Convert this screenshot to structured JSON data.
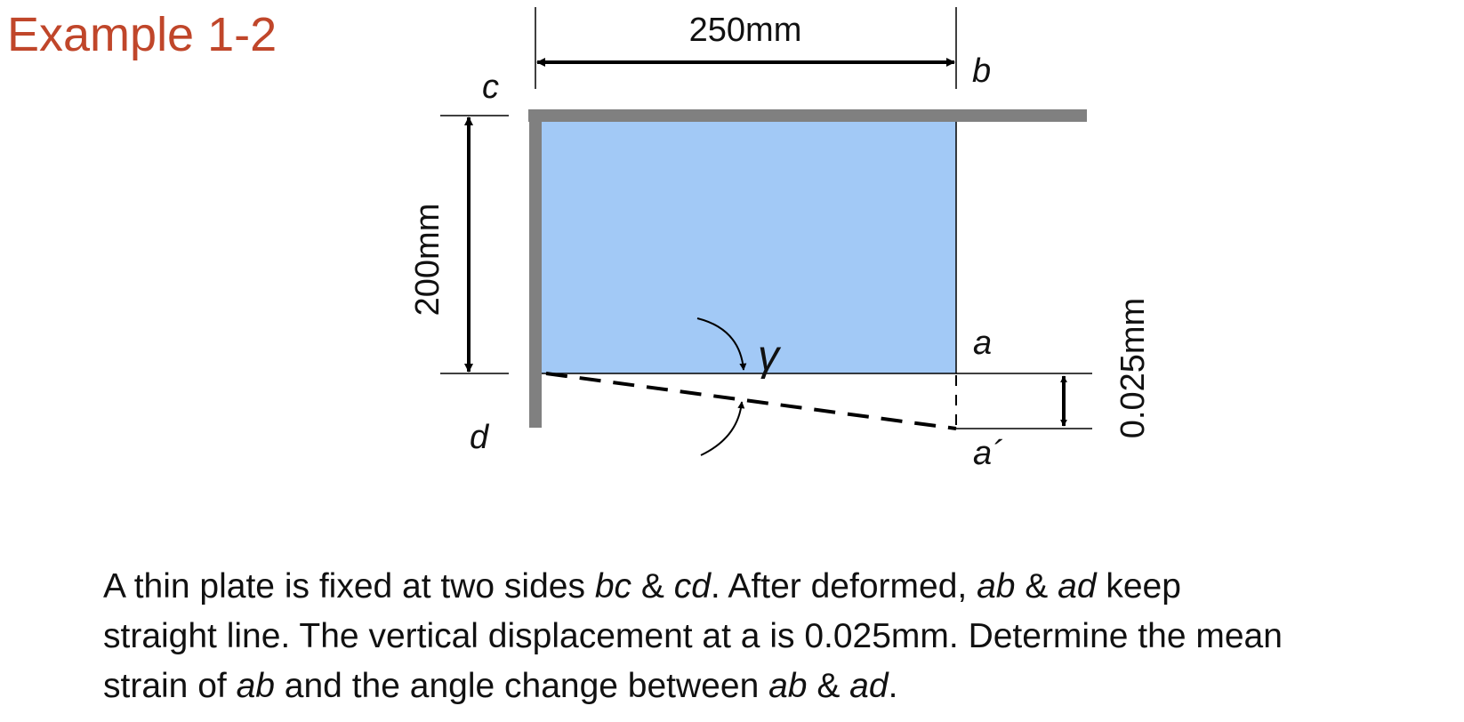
{
  "title": "Example 1-2",
  "labels": {
    "width": "250mm",
    "height": "200mm",
    "displacement": "0.025mm",
    "point_a": "a",
    "point_a_prime": "a´",
    "point_b": "b",
    "point_c": "c",
    "point_d": "d",
    "gamma": "γ"
  },
  "description": {
    "line1": {
      "t1": "A thin plate is fixed at two sides ",
      "e1": "bc",
      "t2": " & ",
      "e2": "cd",
      "t3": ". After deformed, ",
      "e3": "ab",
      "t4": " & ",
      "e4": "ad",
      "t5": " keep"
    },
    "line2": {
      "t1": "straight line. The vertical displacement at a is 0.025mm. Determine the mean"
    },
    "line3": {
      "t1": "strain of ",
      "e1": "ab",
      "t2": " and the angle change between ",
      "e2": "ab",
      "t3": " & ",
      "e3": "ad",
      "t4": "."
    }
  },
  "colors": {
    "title": "#c0462a",
    "plate": "#a2c9f6",
    "support": "#808080"
  }
}
